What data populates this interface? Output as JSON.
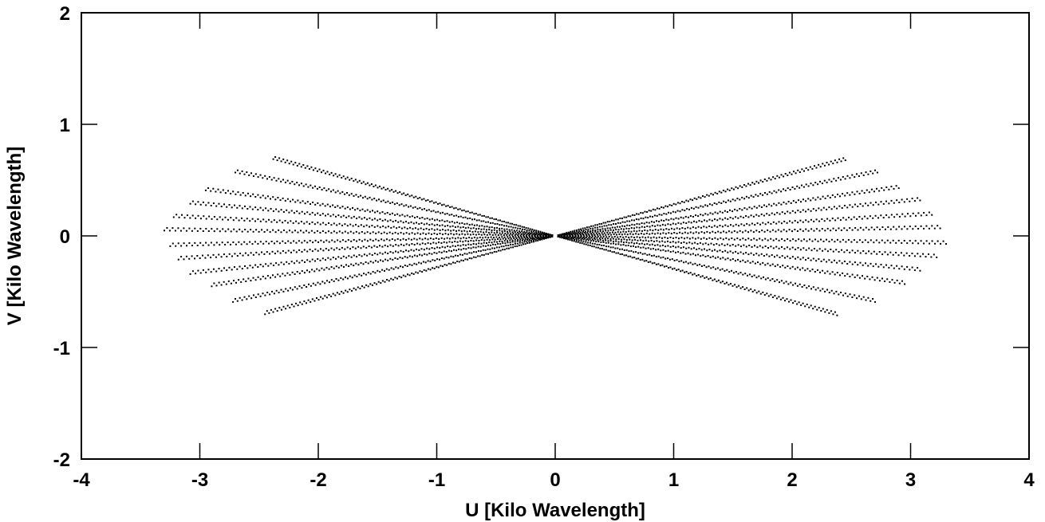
{
  "chart_data": {
    "type": "scatter",
    "title": "",
    "xlabel": "U [Kilo Wavelength]",
    "ylabel": "V [Kilo Wavelength]",
    "xlim": [
      -4,
      4
    ],
    "ylim": [
      -2,
      2
    ],
    "xticks": [
      -4,
      -3,
      -2,
      -1,
      0,
      1,
      2,
      3,
      4
    ],
    "yticks": [
      -2,
      -1,
      0,
      1,
      2
    ],
    "grid": false,
    "legend": "none",
    "marker_color": "#000000",
    "series": [
      {
        "values_description_free": true,
        "tracks": [
          {
            "end": [
              2.45,
              0.69
            ]
          },
          {
            "end": [
              2.72,
              0.58
            ]
          },
          {
            "end": [
              2.9,
              0.44
            ]
          },
          {
            "end": [
              3.08,
              0.33
            ]
          },
          {
            "end": [
              3.18,
              0.2
            ]
          },
          {
            "end": [
              3.25,
              0.08
            ]
          },
          {
            "end": [
              3.3,
              -0.06
            ]
          },
          {
            "end": [
              3.22,
              -0.18
            ]
          },
          {
            "end": [
              3.08,
              -0.3
            ]
          },
          {
            "end": [
              2.95,
              -0.42
            ]
          },
          {
            "end": [
              2.7,
              -0.58
            ]
          },
          {
            "end": [
              2.38,
              -0.7
            ]
          }
        ]
      }
    ]
  }
}
